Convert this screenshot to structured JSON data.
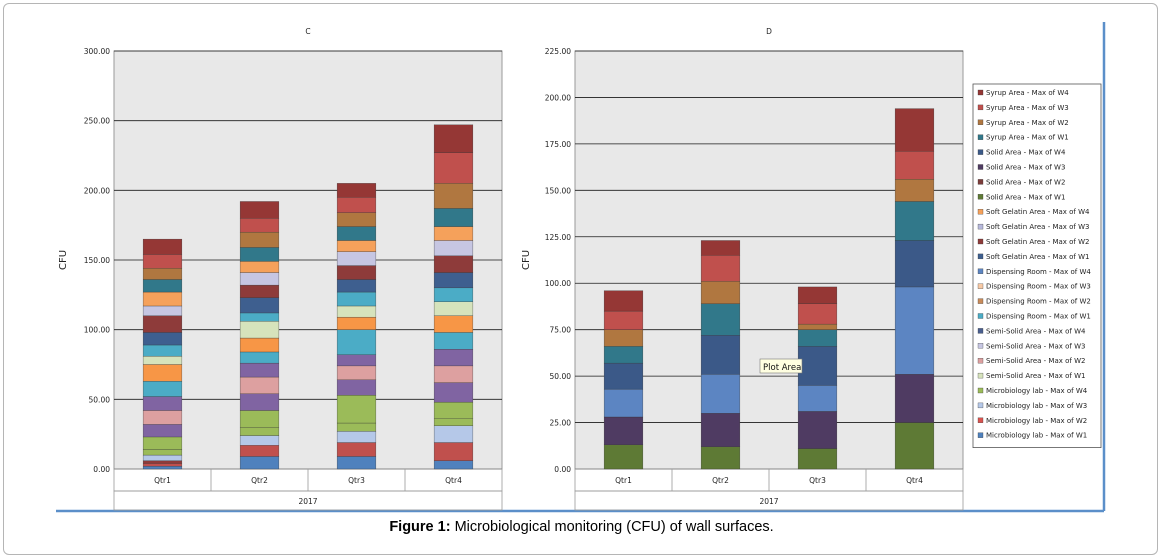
{
  "caption": {
    "label": "Figure 1:",
    "text": "Microbiological monitoring (CFU) of wall surfaces."
  },
  "legend_entries": [
    {
      "name": "Syrup Area - Max of W4",
      "color": "#953735"
    },
    {
      "name": "Syrup Area - Max of W3",
      "color": "#c0504d"
    },
    {
      "name": "Syrup Area - Max of W2",
      "color": "#b07740"
    },
    {
      "name": "Syrup Area - Max of W1",
      "color": "#31788a"
    },
    {
      "name": "Solid Area - Max of W4",
      "color": "#3b5988"
    },
    {
      "name": "Solid Area - Max of W3",
      "color": "#4f3b62"
    },
    {
      "name": "Solid Area - Max of W2",
      "color": "#7b3c3a"
    },
    {
      "name": "Solid Area - Max of W1",
      "color": "#5e7a35"
    },
    {
      "name": "Soft Gelatin Area - Max of W4",
      "color": "#f5a15b"
    },
    {
      "name": "Soft Gelatin Area - Max of W3",
      "color": "#b7b9dc"
    },
    {
      "name": "Soft Gelatin Area - Max of W2",
      "color": "#8e3b3a"
    },
    {
      "name": "Soft Gelatin Area - Max of W1",
      "color": "#3e5f8f"
    },
    {
      "name": "Dispensing Room - Max of W4",
      "color": "#5c85c2"
    },
    {
      "name": "Dispensing Room - Max of W3",
      "color": "#f7c9a5"
    },
    {
      "name": "Dispensing Room - Max of W2",
      "color": "#c98b5a"
    },
    {
      "name": "Dispensing Room - Max of W1",
      "color": "#4bacc6"
    },
    {
      "name": "Semi-Solid Area - Max of W4",
      "color": "#4a5f8f"
    },
    {
      "name": "Semi-Solid Area - Max of W3",
      "color": "#c6c6e2"
    },
    {
      "name": "Semi-Solid Area - Max of W2",
      "color": "#dda0a0"
    },
    {
      "name": "Semi-Solid Area - Max of W1",
      "color": "#d6e3bc"
    },
    {
      "name": "Microbiology lab - Max of W4",
      "color": "#9bbb59"
    },
    {
      "name": "Microbiology lab - Max of W3",
      "color": "#b5c8e8"
    },
    {
      "name": "Microbiology lab - Max of W2",
      "color": "#d9534f"
    },
    {
      "name": "Microbiology lab - Max of W1",
      "color": "#4f81bd"
    }
  ],
  "tooltip": "Plot Area",
  "chart_data": [
    {
      "type": "bar",
      "stacked": true,
      "title": "C",
      "ylabel": "CFU",
      "xlabel": "2017",
      "categories": [
        "Qtr1",
        "Qtr2",
        "Qtr3",
        "Qtr4"
      ],
      "ylim": [
        0,
        300
      ],
      "yticks": [
        "0.00",
        "50.00",
        "100.00",
        "150.00",
        "200.00",
        "250.00",
        "300.00"
      ],
      "grid": true,
      "segments": [
        [
          {
            "value": 2,
            "color": "#4f81bd"
          },
          {
            "value": 2,
            "color": "#c0504d"
          },
          {
            "value": 2,
            "color": "#8e3b3a"
          },
          {
            "value": 4,
            "color": "#b5c8e8"
          },
          {
            "value": 4,
            "color": "#9bbb59"
          },
          {
            "value": 9,
            "color": "#9bbb59"
          },
          {
            "value": 9,
            "color": "#8064a2"
          },
          {
            "value": 10,
            "color": "#dda0a0"
          },
          {
            "value": 10,
            "color": "#8064a2"
          },
          {
            "value": 11,
            "color": "#4bacc6"
          },
          {
            "value": 12,
            "color": "#f79646"
          },
          {
            "value": 6,
            "color": "#d6e3bc"
          },
          {
            "value": 8,
            "color": "#4bacc6"
          },
          {
            "value": 9,
            "color": "#3e5f8f"
          },
          {
            "value": 12,
            "color": "#8e3b3a"
          },
          {
            "value": 7,
            "color": "#c6c6e2"
          },
          {
            "value": 10,
            "color": "#f5a15b"
          },
          {
            "value": 9,
            "color": "#31788a"
          },
          {
            "value": 8,
            "color": "#b07740"
          },
          {
            "value": 10,
            "color": "#c0504d"
          },
          {
            "value": 11,
            "color": "#953735"
          }
        ],
        [
          {
            "value": 9,
            "color": "#4f81bd"
          },
          {
            "value": 8,
            "color": "#c0504d"
          },
          {
            "value": 7,
            "color": "#b5c8e8"
          },
          {
            "value": 6,
            "color": "#9bbb59"
          },
          {
            "value": 12,
            "color": "#9bbb59"
          },
          {
            "value": 12,
            "color": "#8064a2"
          },
          {
            "value": 12,
            "color": "#dda0a0"
          },
          {
            "value": 10,
            "color": "#8064a2"
          },
          {
            "value": 8,
            "color": "#4bacc6"
          },
          {
            "value": 10,
            "color": "#f79646"
          },
          {
            "value": 12,
            "color": "#d6e3bc"
          },
          {
            "value": 6,
            "color": "#4bacc6"
          },
          {
            "value": 11,
            "color": "#3e5f8f"
          },
          {
            "value": 9,
            "color": "#8e3b3a"
          },
          {
            "value": 9,
            "color": "#c6c6e2"
          },
          {
            "value": 8,
            "color": "#f5a15b"
          },
          {
            "value": 10,
            "color": "#31788a"
          },
          {
            "value": 11,
            "color": "#b07740"
          },
          {
            "value": 10,
            "color": "#c0504d"
          },
          {
            "value": 12,
            "color": "#953735"
          }
        ],
        [
          {
            "value": 9,
            "color": "#4f81bd"
          },
          {
            "value": 10,
            "color": "#c0504d"
          },
          {
            "value": 8,
            "color": "#b5c8e8"
          },
          {
            "value": 6,
            "color": "#9bbb59"
          },
          {
            "value": 20,
            "color": "#9bbb59"
          },
          {
            "value": 11,
            "color": "#8064a2"
          },
          {
            "value": 10,
            "color": "#dda0a0"
          },
          {
            "value": 8,
            "color": "#8064a2"
          },
          {
            "value": 18,
            "color": "#4bacc6"
          },
          {
            "value": 9,
            "color": "#f79646"
          },
          {
            "value": 8,
            "color": "#d6e3bc"
          },
          {
            "value": 10,
            "color": "#4bacc6"
          },
          {
            "value": 9,
            "color": "#3e5f8f"
          },
          {
            "value": 10,
            "color": "#8e3b3a"
          },
          {
            "value": 10,
            "color": "#c6c6e2"
          },
          {
            "value": 8,
            "color": "#f5a15b"
          },
          {
            "value": 10,
            "color": "#31788a"
          },
          {
            "value": 10,
            "color": "#b07740"
          },
          {
            "value": 11,
            "color": "#c0504d"
          },
          {
            "value": 10,
            "color": "#953735"
          }
        ],
        [
          {
            "value": 6,
            "color": "#4f81bd"
          },
          {
            "value": 13,
            "color": "#c0504d"
          },
          {
            "value": 12,
            "color": "#b5c8e8"
          },
          {
            "value": 5,
            "color": "#9bbb59"
          },
          {
            "value": 12,
            "color": "#9bbb59"
          },
          {
            "value": 14,
            "color": "#8064a2"
          },
          {
            "value": 12,
            "color": "#dda0a0"
          },
          {
            "value": 12,
            "color": "#8064a2"
          },
          {
            "value": 12,
            "color": "#4bacc6"
          },
          {
            "value": 12,
            "color": "#f79646"
          },
          {
            "value": 10,
            "color": "#d6e3bc"
          },
          {
            "value": 10,
            "color": "#4bacc6"
          },
          {
            "value": 11,
            "color": "#3e5f8f"
          },
          {
            "value": 12,
            "color": "#8e3b3a"
          },
          {
            "value": 11,
            "color": "#c6c6e2"
          },
          {
            "value": 10,
            "color": "#f5a15b"
          },
          {
            "value": 13,
            "color": "#31788a"
          },
          {
            "value": 18,
            "color": "#b07740"
          },
          {
            "value": 22,
            "color": "#c0504d"
          },
          {
            "value": 20,
            "color": "#953735"
          }
        ]
      ]
    },
    {
      "type": "bar",
      "stacked": true,
      "title": "D",
      "ylabel": "CFU",
      "xlabel": "2017",
      "categories": [
        "Qtr1",
        "Qtr2",
        "Qtr3",
        "Qtr4"
      ],
      "ylim": [
        0,
        225
      ],
      "yticks": [
        "0.00",
        "25.00",
        "50.00",
        "75.00",
        "100.00",
        "125.00",
        "150.00",
        "175.00",
        "200.00",
        "225.00"
      ],
      "grid": true,
      "segments": [
        [
          {
            "value": 13,
            "color": "#5e7a35"
          },
          {
            "value": 15,
            "color": "#4f3b62"
          },
          {
            "value": 15,
            "color": "#5c85c2"
          },
          {
            "value": 14,
            "color": "#3b5988"
          },
          {
            "value": 9,
            "color": "#31788a"
          },
          {
            "value": 9,
            "color": "#b07740"
          },
          {
            "value": 10,
            "color": "#c0504d"
          },
          {
            "value": 11,
            "color": "#953735"
          }
        ],
        [
          {
            "value": 12,
            "color": "#5e7a35"
          },
          {
            "value": 18,
            "color": "#4f3b62"
          },
          {
            "value": 21,
            "color": "#5c85c2"
          },
          {
            "value": 21,
            "color": "#3b5988"
          },
          {
            "value": 17,
            "color": "#31788a"
          },
          {
            "value": 12,
            "color": "#b07740"
          },
          {
            "value": 14,
            "color": "#c0504d"
          },
          {
            "value": 8,
            "color": "#953735"
          }
        ],
        [
          {
            "value": 11,
            "color": "#5e7a35"
          },
          {
            "value": 20,
            "color": "#4f3b62"
          },
          {
            "value": 14,
            "color": "#5c85c2"
          },
          {
            "value": 21,
            "color": "#3b5988"
          },
          {
            "value": 9,
            "color": "#31788a"
          },
          {
            "value": 3,
            "color": "#b07740"
          },
          {
            "value": 11,
            "color": "#c0504d"
          },
          {
            "value": 9,
            "color": "#953735"
          }
        ],
        [
          {
            "value": 25,
            "color": "#5e7a35"
          },
          {
            "value": 26,
            "color": "#4f3b62"
          },
          {
            "value": 47,
            "color": "#5c85c2"
          },
          {
            "value": 25,
            "color": "#3b5988"
          },
          {
            "value": 21,
            "color": "#31788a"
          },
          {
            "value": 12,
            "color": "#b07740"
          },
          {
            "value": 15,
            "color": "#c0504d"
          },
          {
            "value": 23,
            "color": "#953735"
          }
        ]
      ]
    }
  ]
}
